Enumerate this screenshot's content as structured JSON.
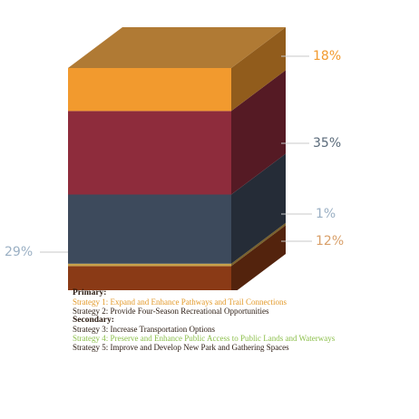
{
  "chart_data": {
    "type": "stacked-3d-bar",
    "series": [
      {
        "name": "Strategy 5: Improve and Develop New Park and Gathering Spaces",
        "value": 12,
        "label": "12%",
        "color": "#8a3a16"
      },
      {
        "name": "Strategy 4: Preserve and Enhance Public Access to Public Lands and Waterways",
        "value": 1,
        "label": "1%",
        "color": "#c9a24a"
      },
      {
        "name": "Strategy 3: Increase Transportation Options",
        "value": 29,
        "label": "29%",
        "color": "#3d4a5c"
      },
      {
        "name": "Strategy 2: Provide Four-Season Recreational Opportunities",
        "value": 35,
        "label": "35%",
        "color": "#8e2c3c"
      },
      {
        "name": "Strategy 1: Expand and Enhance Pathways and Trail Connections",
        "value": 18,
        "label": "18%",
        "color": "#f29a2e"
      }
    ],
    "top_color": "#b07a34"
  },
  "legend": {
    "primary_heading": "Primary:",
    "primary_items": [
      {
        "text": "Strategy 1: Expand and Enhance Pathways and Trail Connections",
        "color": "#e39a2a"
      },
      {
        "text": "Strategy 2: Provide Four-Season Recreational Opportunities",
        "color": "#2a1a10"
      }
    ],
    "secondary_heading": "Secondary:",
    "secondary_items": [
      {
        "text": "Strategy 3: Increase Transportation Options",
        "color": "#2a1a10"
      },
      {
        "text": "Strategy 4: Preserve and Enhance Public Access to Public Lands and Waterways",
        "color": "#8bbf4a"
      },
      {
        "text": "Strategy 5: Improve and Develop New Park and Gathering Spaces",
        "color": "#2a1a10"
      }
    ]
  }
}
